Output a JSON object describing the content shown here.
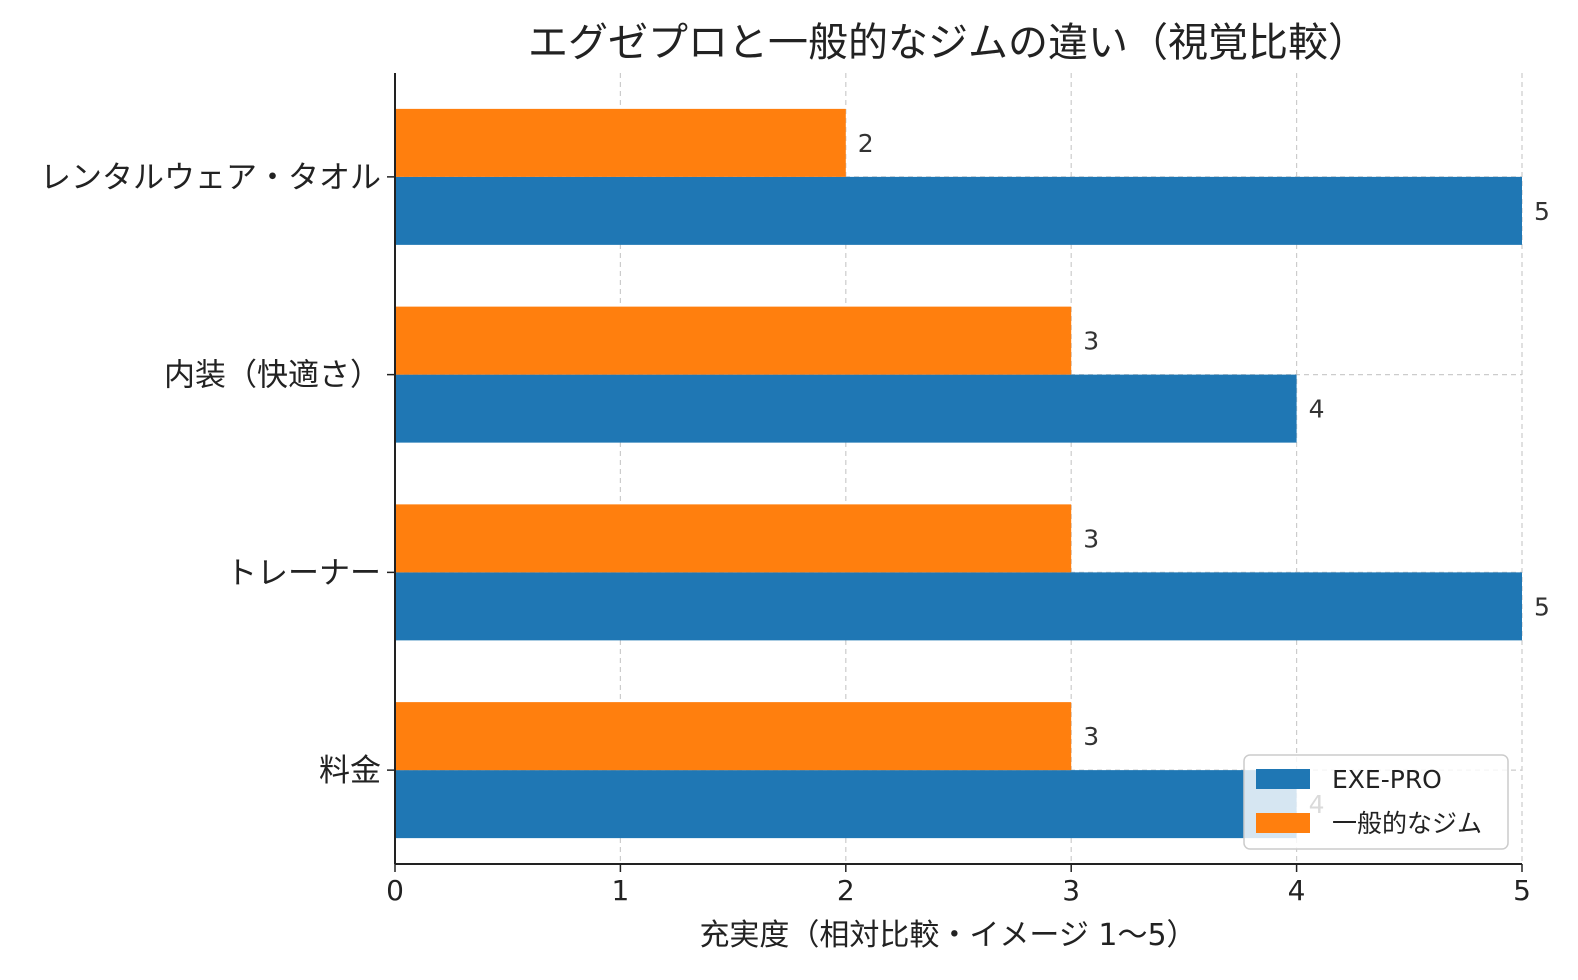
{
  "chart_data": {
    "type": "bar",
    "orientation": "horizontal",
    "title": "エグゼプロと一般的なジムの違い（視覚比較）",
    "xlabel": "充実度（相対比較・イメージ 1〜5）",
    "ylabel": "",
    "xlim": [
      0,
      5
    ],
    "x_ticks": [
      "0",
      "1",
      "2",
      "3",
      "4",
      "5"
    ],
    "categories": [
      "レンタルウェア・タオル",
      "内装（快適さ）",
      "トレーナー",
      "料金"
    ],
    "series": [
      {
        "name": "EXE-PRO",
        "color": "#1f77b4",
        "values": [
          5,
          4,
          5,
          4
        ]
      },
      {
        "name": "一般的なジム",
        "color": "#ff7f0e",
        "values": [
          2,
          3,
          3,
          3
        ]
      }
    ],
    "grid": true,
    "legend_position": "bottom-right"
  }
}
